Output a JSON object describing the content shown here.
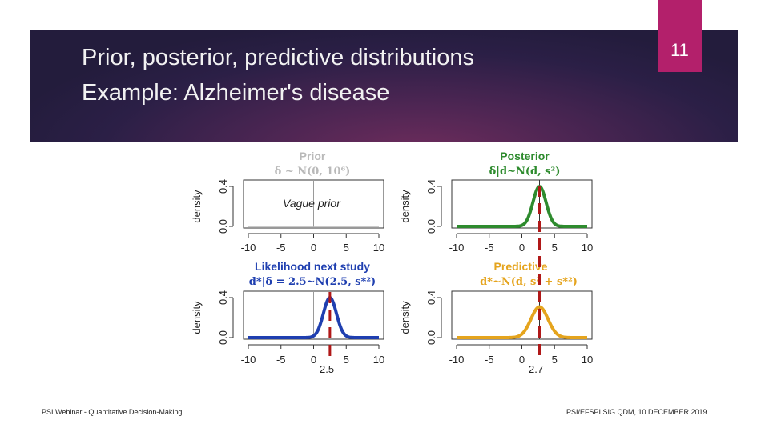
{
  "slide": {
    "title": "Prior, posterior, predictive distributions",
    "subtitle": "Example: Alzheimer's disease",
    "page_number": "11",
    "footer_left": "PSI Webinar - Quantitative Decision-Making",
    "footer_right": "PSI/EFSPI SIG QDM, 10 DECEMBER 2019"
  },
  "panels": {
    "prior": {
      "title": "Prior",
      "formula": "δ ~ N(0, 10⁶)",
      "annotation": "Vague prior",
      "color": "#b9b9b9"
    },
    "posterior": {
      "title": "Posterior",
      "formula": "δ|d~N(d, s²)",
      "color": "#2e8b2e"
    },
    "likelihood": {
      "title": "Likelihood next study",
      "formula": "d*|δ = 2.5~N(2.5, s*²)",
      "color": "#1f3fb0"
    },
    "predictive": {
      "title": "Predictive",
      "formula": "d*~N(d, s² + s*²)",
      "color": "#e5a41d"
    }
  },
  "markers": {
    "likelihood_label": "2.5",
    "predictive_label": "2.7",
    "color": "#b01818"
  },
  "chart_data": [
    {
      "type": "line",
      "panel": "prior",
      "ylabel": "density",
      "xlim": [
        -10,
        10
      ],
      "ylim": [
        0,
        0.4
      ],
      "x_ticks": [
        "-10",
        "-5",
        "0",
        "5",
        "10"
      ],
      "y_ticks": [
        "0.0",
        "0.4"
      ],
      "vline": 0,
      "series": [
        {
          "mean": 0,
          "sd": 1000,
          "color": "#b9b9b9"
        }
      ]
    },
    {
      "type": "line",
      "panel": "posterior",
      "ylabel": "density",
      "xlim": [
        -10,
        10
      ],
      "ylim": [
        0,
        0.4
      ],
      "x_ticks": [
        "-10",
        "-5",
        "0",
        "5",
        "10"
      ],
      "y_ticks": [
        "0.0",
        "0.4"
      ],
      "vline": 2.7,
      "series": [
        {
          "mean": 2.7,
          "sd": 1.0,
          "color": "#2e8b2e"
        }
      ]
    },
    {
      "type": "line",
      "panel": "likelihood",
      "ylabel": "density",
      "xlim": [
        -10,
        10
      ],
      "ylim": [
        0,
        0.4
      ],
      "x_ticks": [
        "-10",
        "-5",
        "0",
        "5",
        "10"
      ],
      "y_ticks": [
        "0.0",
        "0.4"
      ],
      "vline": 0,
      "series": [
        {
          "mean": 2.5,
          "sd": 1.0,
          "color": "#1f3fb0"
        }
      ]
    },
    {
      "type": "line",
      "panel": "predictive",
      "ylabel": "density",
      "xlim": [
        -10,
        10
      ],
      "ylim": [
        0,
        0.4
      ],
      "x_ticks": [
        "-10",
        "-5",
        "0",
        "5",
        "10"
      ],
      "y_ticks": [
        "0.0",
        "0.4"
      ],
      "vline": 2.7,
      "series": [
        {
          "mean": 2.7,
          "sd": 1.3,
          "color": "#e5a41d"
        }
      ]
    }
  ]
}
